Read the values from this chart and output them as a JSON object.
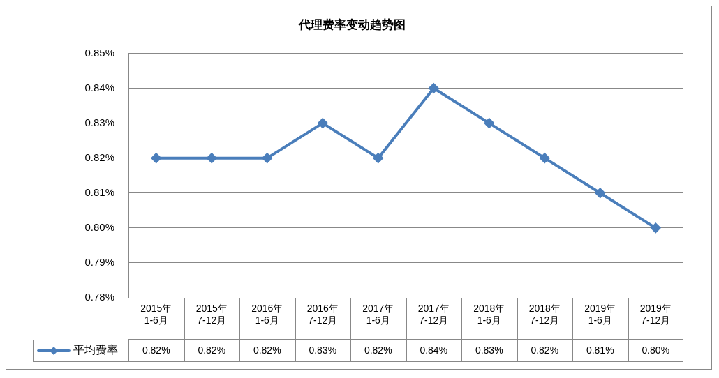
{
  "chart_data": {
    "type": "line",
    "title": "代理费率变动趋势图",
    "categories": [
      "2015年\n1-6月",
      "2015年\n7-12月",
      "2016年\n1-6月",
      "2016年\n7-12月",
      "2017年\n1-6月",
      "2017年\n7-12月",
      "2018年\n1-6月",
      "2018年\n7-12月",
      "2019年\n1-6月",
      "2019年\n7-12月"
    ],
    "series": [
      {
        "name": "平均费率",
        "color": "#4a7ebb",
        "values": [
          0.82,
          0.82,
          0.82,
          0.83,
          0.82,
          0.84,
          0.83,
          0.82,
          0.81,
          0.8
        ],
        "value_labels": [
          "0.82%",
          "0.82%",
          "0.82%",
          "0.83%",
          "0.82%",
          "0.84%",
          "0.83%",
          "0.82%",
          "0.81%",
          "0.80%"
        ]
      }
    ],
    "ylim": [
      0.78,
      0.85
    ],
    "yticks": [
      {
        "value": 0.78,
        "label": "0.78%"
      },
      {
        "value": 0.79,
        "label": "0.79%"
      },
      {
        "value": 0.8,
        "label": "0.80%"
      },
      {
        "value": 0.81,
        "label": "0.81%"
      },
      {
        "value": 0.82,
        "label": "0.82%"
      },
      {
        "value": 0.83,
        "label": "0.83%"
      },
      {
        "value": 0.84,
        "label": "0.84%"
      },
      {
        "value": 0.85,
        "label": "0.85%"
      }
    ],
    "grid": "y",
    "marker": "diamond",
    "line_style": "solid",
    "legend": "bottom left"
  }
}
